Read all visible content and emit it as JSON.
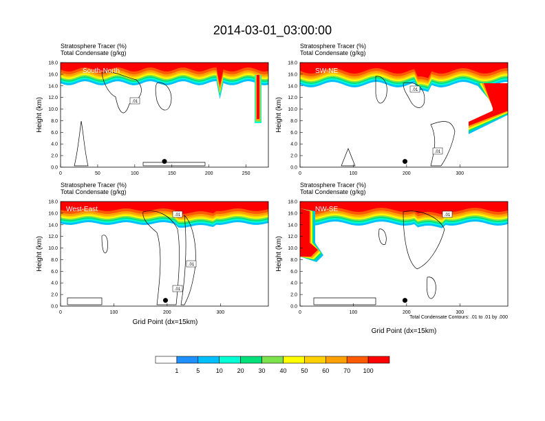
{
  "figure_title": "2014-03-01_03:00:00",
  "contour_note": "Total Condensate Contours: .01 to .01 by .000",
  "colorbar": {
    "labels": [
      "1",
      "5",
      "10",
      "20",
      "30",
      "40",
      "50",
      "60",
      "70",
      "100"
    ],
    "colors": [
      "#ffffff",
      "#1e90ff",
      "#00bfff",
      "#00ffd5",
      "#00e07a",
      "#7de34d",
      "#ffff00",
      "#ffd000",
      "#ffa000",
      "#ff5a00",
      "#ff0000"
    ]
  },
  "chart_data": [
    {
      "type": "heatmap",
      "panel_label": "South-North",
      "title_line1": "Stratosphere Tracer   (%)",
      "title_line2": "Total Condensate   (g/kg)",
      "ylabel": "Height (km)",
      "xlabel": "",
      "xlim": [
        0,
        280
      ],
      "ylim": [
        0,
        18
      ],
      "xticks": [
        "0",
        "50",
        "100",
        "150",
        "200",
        "250"
      ],
      "yticks": [
        "0.0",
        "2.0",
        "4.0",
        "6.0",
        "8.0",
        "10.0",
        "12.0",
        "14.0",
        "16.0",
        "18.0"
      ],
      "contour_labels": [
        ".01"
      ],
      "marker_x": 140
    },
    {
      "type": "heatmap",
      "panel_label": "SW-NE",
      "title_line1": "Stratosphere Tracer   (%)",
      "title_line2": "Total Condensate   (g/kg)",
      "ylabel": "Height (km)",
      "xlabel": "",
      "xlim": [
        0,
        390
      ],
      "ylim": [
        0,
        18
      ],
      "xticks": [
        "0",
        "100",
        "200",
        "300"
      ],
      "yticks": [
        "0.0",
        "2.0",
        "4.0",
        "6.0",
        "8.0",
        "10.0",
        "12.0",
        "14.0",
        "16.0",
        "18.0"
      ],
      "contour_labels": [
        ".01",
        ".01"
      ],
      "marker_x": 197
    },
    {
      "type": "heatmap",
      "panel_label": "West-East",
      "title_line1": "Stratosphere Tracer   (%)",
      "title_line2": "Total Condensate   (g/kg)",
      "ylabel": "Height (km)",
      "xlabel": "Grid Point (dx=15km)",
      "xlim": [
        0,
        390
      ],
      "ylim": [
        0,
        18
      ],
      "xticks": [
        "0",
        "100",
        "200",
        "300"
      ],
      "yticks": [
        "0.0",
        "2.0",
        "4.0",
        "6.0",
        "8.0",
        "10.0",
        "12.0",
        "14.0",
        "16.0",
        "18.0"
      ],
      "contour_labels": [
        ".01",
        ".01",
        ".01"
      ],
      "marker_x": 197
    },
    {
      "type": "heatmap",
      "panel_label": "NW-SE",
      "title_line1": "Stratosphere Tracer   (%)",
      "title_line2": "Total Condensate   (g/kg)",
      "ylabel": "Height (km)",
      "xlabel": "Grid Point (dx=15km)",
      "xlim": [
        0,
        390
      ],
      "ylim": [
        0,
        18
      ],
      "xticks": [
        "0",
        "100",
        "200",
        "300"
      ],
      "yticks": [
        "0.0",
        "2.0",
        "4.0",
        "6.0",
        "8.0",
        "10.0",
        "12.0",
        "14.0",
        "16.0",
        "18.0"
      ],
      "contour_labels": [
        ".01"
      ],
      "marker_x": 197
    }
  ]
}
